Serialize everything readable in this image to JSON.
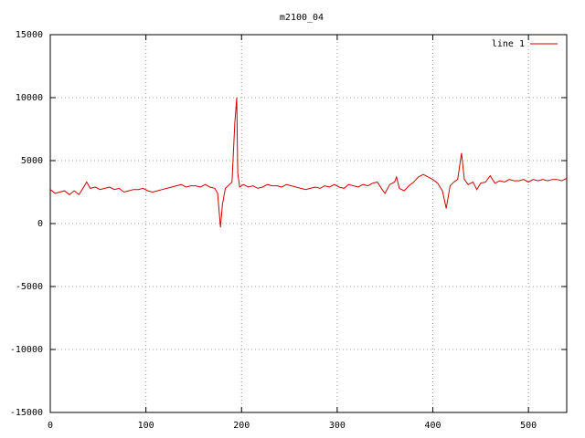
{
  "chart_data": {
    "type": "line",
    "title": "m2100_04",
    "x": [
      0,
      5,
      10,
      15,
      20,
      25,
      30,
      35,
      38,
      42,
      47,
      52,
      57,
      62,
      67,
      72,
      77,
      82,
      87,
      92,
      97,
      102,
      107,
      112,
      117,
      122,
      127,
      132,
      137,
      142,
      147,
      152,
      157,
      162,
      167,
      172,
      175,
      178,
      180,
      183,
      186,
      190,
      193,
      195,
      196,
      198,
      202,
      207,
      212,
      217,
      222,
      227,
      232,
      237,
      242,
      247,
      252,
      257,
      262,
      267,
      272,
      277,
      282,
      287,
      292,
      297,
      302,
      307,
      312,
      317,
      322,
      327,
      332,
      337,
      342,
      347,
      350,
      355,
      360,
      362,
      365,
      370,
      375,
      380,
      385,
      390,
      395,
      400,
      405,
      410,
      414,
      418,
      422,
      426,
      430,
      433,
      437,
      442,
      446,
      450,
      455,
      460,
      465,
      470,
      475,
      480,
      485,
      490,
      495,
      500,
      505,
      510,
      515,
      520,
      525,
      530,
      535,
      540
    ],
    "series": [
      {
        "name": "line 1",
        "color": "#d00000",
        "values": [
          2700,
          2400,
          2500,
          2600,
          2300,
          2600,
          2300,
          2900,
          3300,
          2800,
          2900,
          2700,
          2800,
          2900,
          2700,
          2800,
          2500,
          2600,
          2700,
          2700,
          2800,
          2600,
          2500,
          2600,
          2700,
          2800,
          2900,
          3000,
          3100,
          2900,
          3000,
          3000,
          2900,
          3100,
          2900,
          2800,
          2400,
          -300,
          1500,
          2800,
          3000,
          3300,
          8000,
          10000,
          4000,
          2900,
          3100,
          2900,
          3000,
          2800,
          2900,
          3100,
          3000,
          3000,
          2900,
          3100,
          3000,
          2900,
          2800,
          2700,
          2800,
          2900,
          2800,
          3000,
          2900,
          3100,
          2900,
          2800,
          3100,
          3000,
          2900,
          3100,
          3000,
          3200,
          3300,
          2700,
          2400,
          3100,
          3300,
          3700,
          2800,
          2600,
          3000,
          3300,
          3700,
          3900,
          3700,
          3500,
          3200,
          2600,
          1200,
          3000,
          3300,
          3500,
          5600,
          3500,
          3100,
          3300,
          2700,
          3200,
          3300,
          3800,
          3200,
          3400,
          3300,
          3500,
          3400,
          3400,
          3500,
          3300,
          3500,
          3400,
          3500,
          3400,
          3500,
          3500,
          3400,
          3600
        ]
      }
    ],
    "xlim": [
      0,
      540
    ],
    "ylim": [
      -15000,
      15000
    ],
    "xticks": [
      0,
      100,
      200,
      300,
      400,
      500
    ],
    "yticks": [
      -15000,
      -10000,
      -5000,
      0,
      5000,
      10000,
      15000
    ],
    "grid": true,
    "legend": "top-right"
  }
}
